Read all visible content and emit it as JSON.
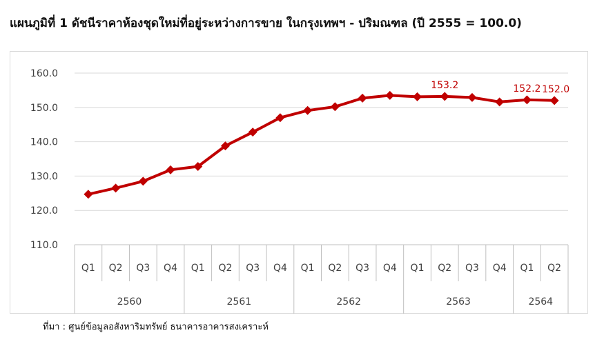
{
  "title": "แผนภูมิที่ 1 ดัชนีราคาห้องชุดใหม่ที่อยู่ระหว่างการขาย ในกรุงเทพฯ - ปริมณฑล (ปี 2555 = 100.0)",
  "source": "ที่มา : ศูนย์ข้อมูลอสังหาริมทรัพย์ ธนาคารอาคารสงเคราะห์",
  "colors": {
    "series": "#c00000",
    "grid": "#d9d9d9",
    "axis": "#bfbfbf",
    "text": "#404040"
  },
  "chart_data": {
    "type": "line",
    "title": "แผนภูมิที่ 1 ดัชนีราคาห้องชุดใหม่ที่อยู่ระหว่างการขาย ในกรุงเทพฯ - ปริมณฑล (ปี 2555 = 100.0)",
    "categories": [
      "Q1",
      "Q2",
      "Q3",
      "Q4",
      "Q1",
      "Q2",
      "Q3",
      "Q4",
      "Q1",
      "Q2",
      "Q3",
      "Q4",
      "Q1",
      "Q2",
      "Q3",
      "Q4",
      "Q1",
      "Q2"
    ],
    "groups": [
      {
        "label": "2560",
        "count": 4
      },
      {
        "label": "2561",
        "count": 4
      },
      {
        "label": "2562",
        "count": 4
      },
      {
        "label": "2563",
        "count": 4
      },
      {
        "label": "2564",
        "count": 2
      }
    ],
    "values": [
      124.7,
      126.5,
      128.5,
      131.8,
      132.8,
      138.8,
      142.8,
      147.0,
      149.1,
      150.2,
      152.7,
      153.5,
      153.1,
      153.2,
      152.9,
      151.6,
      152.2,
      152.0
    ],
    "data_labels": [
      {
        "index": 13,
        "text": "153.2"
      },
      {
        "index": 16,
        "text": "152.2"
      },
      {
        "index": 17,
        "text": "152.0"
      }
    ],
    "yticks": [
      "110.0",
      "120.0",
      "130.0",
      "140.0",
      "150.0",
      "160.0"
    ],
    "ylim": [
      110,
      160
    ],
    "grid": true,
    "legend": "none"
  }
}
